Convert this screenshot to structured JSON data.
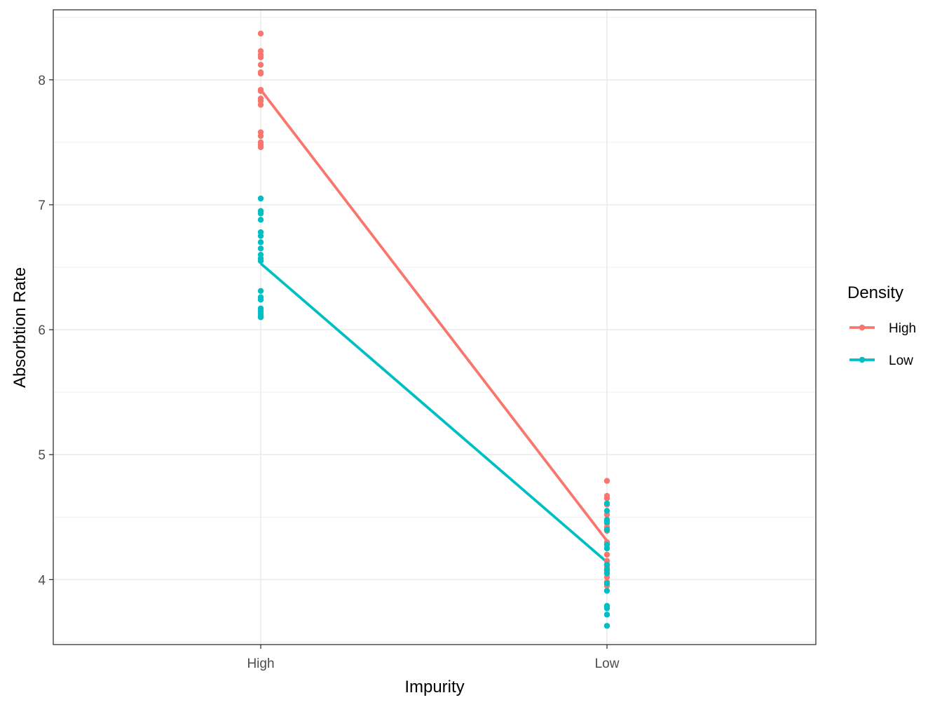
{
  "chart_data": {
    "type": "line",
    "xlabel": "Impurity",
    "ylabel": "Absorbtion Rate",
    "categories": [
      "High",
      "Low"
    ],
    "ylim": [
      3.48,
      8.56
    ],
    "y_ticks": [
      "4",
      "5",
      "6",
      "7",
      "8"
    ],
    "grid": true,
    "legend": {
      "title": "Density",
      "position": "right"
    },
    "series": [
      {
        "name": "High",
        "color": "#F8766D",
        "means": [
          7.92,
          4.31
        ],
        "points": {
          "High": [
            8.37,
            8.23,
            8.2,
            8.18,
            8.12,
            8.06,
            8.05,
            7.92,
            7.91,
            7.85,
            7.83,
            7.8,
            7.58,
            7.55,
            7.5,
            7.48,
            7.46
          ],
          "Low": [
            4.79,
            4.67,
            4.65,
            4.6,
            4.52,
            4.45,
            4.42,
            4.39,
            4.3,
            4.25,
            4.2,
            4.15,
            4.1,
            4.07,
            4.05,
            4.02,
            3.98,
            3.95
          ]
        }
      },
      {
        "name": "Low",
        "color": "#00BFC4",
        "means": [
          6.53,
          4.14
        ],
        "points": {
          "High": [
            7.05,
            6.95,
            6.93,
            6.88,
            6.78,
            6.75,
            6.7,
            6.65,
            6.6,
            6.57,
            6.55,
            6.31,
            6.26,
            6.24,
            6.17,
            6.15,
            6.13,
            6.11,
            6.1
          ],
          "Low": [
            4.61,
            4.55,
            4.48,
            4.46,
            4.4,
            4.28,
            4.25,
            4.12,
            4.08,
            4.05,
            3.97,
            3.91,
            3.79,
            3.77,
            3.72,
            3.63
          ]
        }
      }
    ]
  }
}
